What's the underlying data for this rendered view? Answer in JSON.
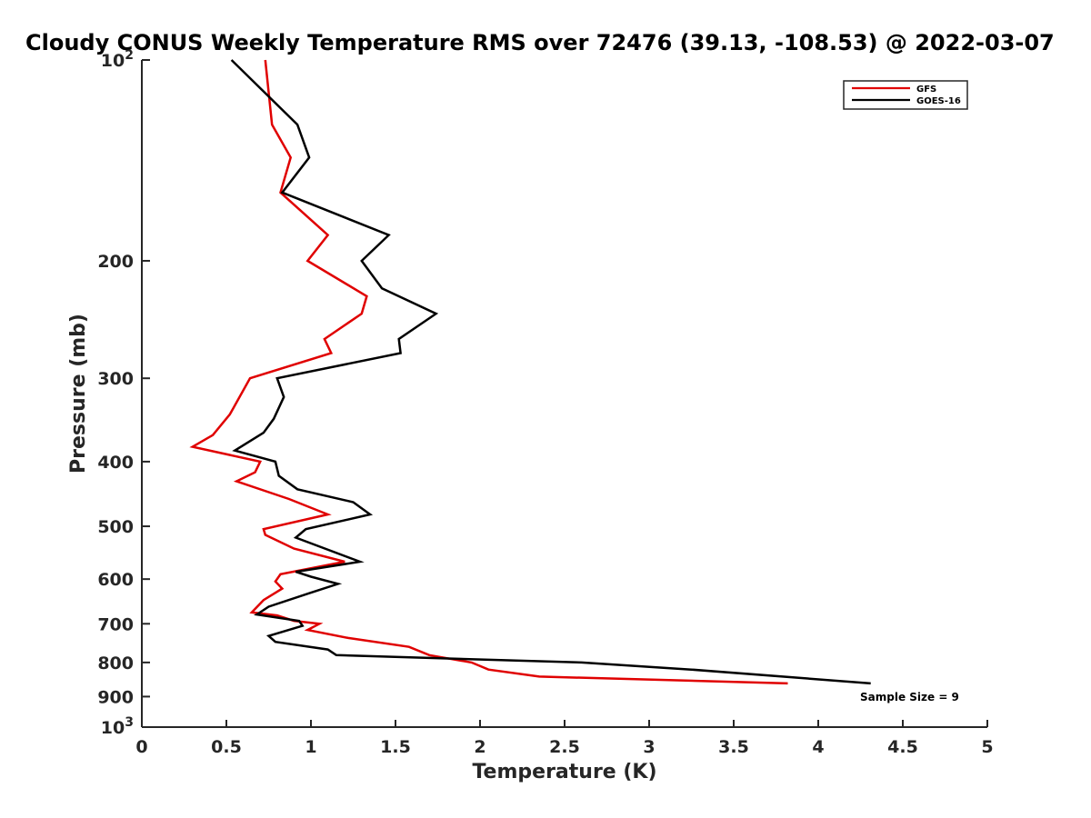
{
  "chart_data": {
    "type": "line",
    "title": "Cloudy CONUS Weekly Temperature RMS over 72476 (39.13, -108.53) @ 2022-03-07",
    "xlabel": "Temperature (K)",
    "ylabel": "Pressure (mb)",
    "xlim": [
      0,
      5
    ],
    "ylim": [
      100,
      1000
    ],
    "y_scale": "log",
    "y_reversed": true,
    "x_ticks": [
      "0",
      "0.5",
      "1",
      "1.5",
      "2",
      "2.5",
      "3",
      "3.5",
      "4",
      "4.5",
      "5"
    ],
    "y_ticks": [
      {
        "value": 100,
        "base": "10",
        "exp": "2"
      },
      {
        "value": 200,
        "label": "200"
      },
      {
        "value": 300,
        "label": "300"
      },
      {
        "value": 400,
        "label": "400"
      },
      {
        "value": 500,
        "label": "500"
      },
      {
        "value": 600,
        "label": "600"
      },
      {
        "value": 700,
        "label": "700"
      },
      {
        "value": 800,
        "label": "800"
      },
      {
        "value": 900,
        "label": "900"
      },
      {
        "value": 1000,
        "base": "10",
        "exp": "3"
      }
    ],
    "grid": false,
    "legend_position": "top-right",
    "series": [
      {
        "name": "GFS",
        "color": "#e00000",
        "points": [
          [
            0.73,
            100
          ],
          [
            0.77,
            125
          ],
          [
            0.88,
            140
          ],
          [
            0.82,
            158
          ],
          [
            1.1,
            183
          ],
          [
            0.98,
            200
          ],
          [
            1.33,
            226
          ],
          [
            1.3,
            240
          ],
          [
            1.08,
            262
          ],
          [
            1.12,
            275
          ],
          [
            0.64,
            300
          ],
          [
            0.52,
            340
          ],
          [
            0.42,
            365
          ],
          [
            0.3,
            380
          ],
          [
            0.7,
            400
          ],
          [
            0.67,
            415
          ],
          [
            0.56,
            428
          ],
          [
            0.87,
            455
          ],
          [
            1.1,
            480
          ],
          [
            0.72,
            505
          ],
          [
            0.73,
            515
          ],
          [
            0.9,
            540
          ],
          [
            1.2,
            565
          ],
          [
            0.82,
            590
          ],
          [
            0.79,
            605
          ],
          [
            0.83,
            620
          ],
          [
            0.72,
            645
          ],
          [
            0.65,
            673
          ],
          [
            0.8,
            680
          ],
          [
            0.9,
            693
          ],
          [
            1.05,
            700
          ],
          [
            0.98,
            715
          ],
          [
            1.22,
            735
          ],
          [
            1.58,
            758
          ],
          [
            1.7,
            780
          ],
          [
            1.95,
            800
          ],
          [
            2.05,
            820
          ],
          [
            2.35,
            840
          ],
          [
            3.82,
            860
          ]
        ]
      },
      {
        "name": "GOES-16",
        "color": "#000000",
        "points": [
          [
            0.53,
            100
          ],
          [
            0.92,
            125
          ],
          [
            0.99,
            140
          ],
          [
            0.83,
            158
          ],
          [
            1.46,
            183
          ],
          [
            1.3,
            200
          ],
          [
            1.42,
            220
          ],
          [
            1.74,
            240
          ],
          [
            1.52,
            262
          ],
          [
            1.53,
            275
          ],
          [
            0.8,
            300
          ],
          [
            0.84,
            320
          ],
          [
            0.78,
            345
          ],
          [
            0.72,
            362
          ],
          [
            0.55,
            385
          ],
          [
            0.79,
            400
          ],
          [
            0.81,
            420
          ],
          [
            0.92,
            440
          ],
          [
            1.25,
            460
          ],
          [
            1.35,
            480
          ],
          [
            0.97,
            505
          ],
          [
            0.91,
            520
          ],
          [
            1.29,
            565
          ],
          [
            0.91,
            585
          ],
          [
            1.0,
            595
          ],
          [
            1.16,
            610
          ],
          [
            0.99,
            630
          ],
          [
            0.75,
            660
          ],
          [
            0.68,
            678
          ],
          [
            0.93,
            693
          ],
          [
            0.95,
            705
          ],
          [
            0.75,
            730
          ],
          [
            0.79,
            745
          ],
          [
            1.1,
            765
          ],
          [
            1.15,
            780
          ],
          [
            2.6,
            800
          ],
          [
            3.25,
            820
          ],
          [
            4.31,
            860
          ]
        ]
      }
    ],
    "annotations": [
      {
        "text": "Sample Size = 9"
      }
    ]
  }
}
